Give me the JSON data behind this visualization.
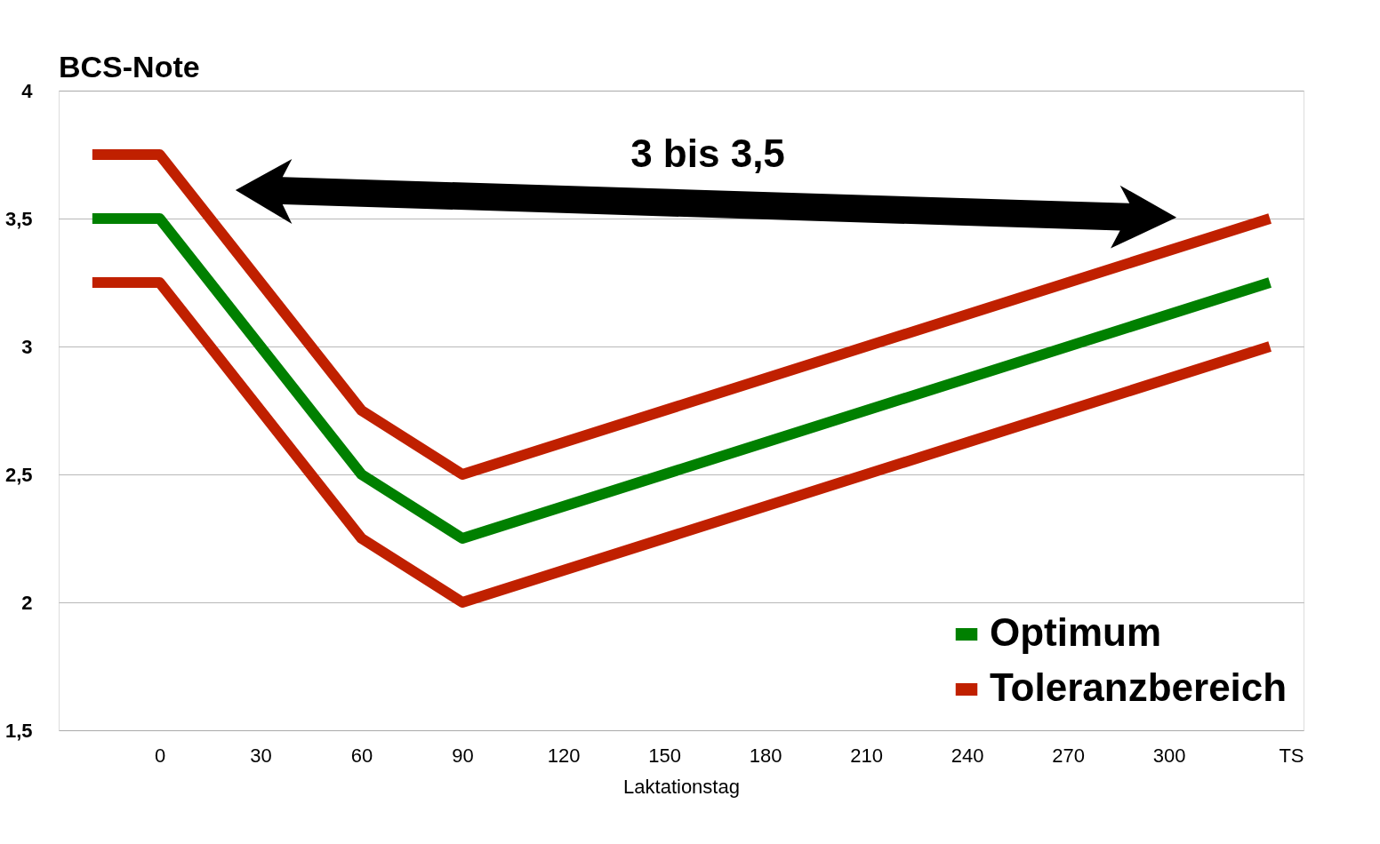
{
  "chart_data": {
    "type": "line",
    "ylabel": "BCS-Note",
    "xlabel": "Laktationstag",
    "x": [
      -20,
      0,
      60,
      90,
      330
    ],
    "series": [
      {
        "name": "Optimum",
        "color": "#008000",
        "values": [
          3.5,
          3.5,
          2.5,
          2.25,
          3.25
        ]
      },
      {
        "name": "Toleranzbereich",
        "color": "#c02000",
        "values": [
          3.75,
          3.75,
          2.75,
          2.5,
          3.5
        ]
      },
      {
        "color": "#c02000",
        "values": [
          3.25,
          3.25,
          2.25,
          2.0,
          3.0
        ]
      }
    ],
    "xlim": [
      -30,
      340
    ],
    "xticks": [
      0,
      30,
      60,
      90,
      120,
      150,
      180,
      210,
      240,
      270,
      300,
      {
        "value": 340,
        "label": "TS"
      }
    ],
    "ylim": [
      1.5,
      4
    ],
    "yticks": [
      {
        "value": 1.5,
        "label": "1,5"
      },
      2,
      {
        "value": 2.5,
        "label": "2,5"
      },
      3,
      {
        "value": 3.5,
        "label": "3,5"
      },
      4
    ],
    "annotations": [
      "3 bis 3,5"
    ],
    "grid": "y",
    "legend": "bottom right",
    "marker": "none",
    "line_style": "solid"
  }
}
